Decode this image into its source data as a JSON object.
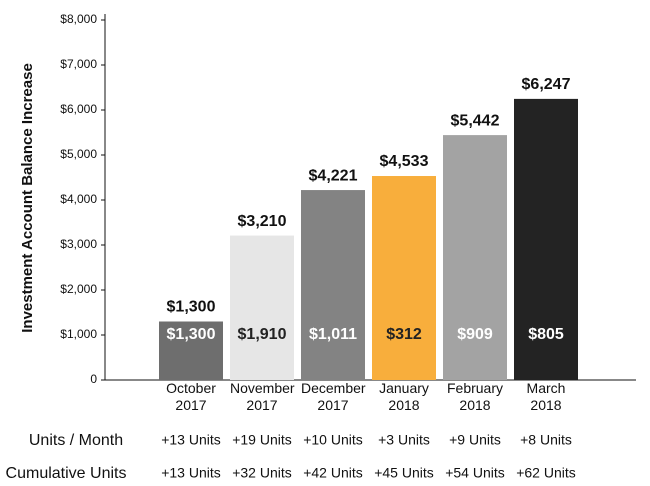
{
  "chart_data": {
    "type": "bar",
    "y_label": "Investment Account Balance Increase",
    "categories": [
      "October 2017",
      "November 2017",
      "December 2017",
      "January 2018",
      "February 2018",
      "March 2018"
    ],
    "values": [
      1300,
      3210,
      4221,
      4533,
      5442,
      6247
    ],
    "value_labels": [
      "$1,300",
      "$3,210",
      "$4,221",
      "$4,533",
      "$5,442",
      "$6,247"
    ],
    "colors": [
      "#6e6e6e",
      "#e6e6e6",
      "#838383",
      "#f8ae3c",
      "#a3a3a3",
      "#232323"
    ],
    "increases": [
      1300,
      1910,
      1011,
      312,
      909,
      805
    ],
    "increase_labels": [
      "$1,300",
      "$1,910",
      "$1,011",
      "$312",
      "$909",
      "$805"
    ],
    "increase_label_colors": [
      "#ffffff",
      "#222222",
      "#ffffff",
      "#222222",
      "#ffffff",
      "#ffffff"
    ],
    "ylim": [
      0,
      8000
    ],
    "yticks": [
      0,
      {
        "value": 1000,
        "label": "$1,000"
      },
      {
        "value": 2000,
        "label": "$2,000"
      },
      {
        "value": 3000,
        "label": "$3,000"
      },
      {
        "value": 4000,
        "label": "$4,000"
      },
      {
        "value": 5000,
        "label": "$5,000"
      },
      {
        "value": 6000,
        "label": "$6,000"
      },
      {
        "value": 7000,
        "label": "$7,000"
      },
      {
        "value": 8000,
        "label": "$8,000"
      }
    ],
    "grid": false,
    "rows": [
      {
        "label": "Units / Month",
        "cells": [
          "+13 Units",
          "+19 Units",
          "+10 Units",
          "+3 Units",
          "+9 Units",
          "+8 Units"
        ]
      },
      {
        "label": "Cumulative Units",
        "cells": [
          "+13 Units",
          "+32 Units",
          "+42 Units",
          "+45 Units",
          "+54 Units",
          "+62 Units"
        ]
      }
    ]
  }
}
